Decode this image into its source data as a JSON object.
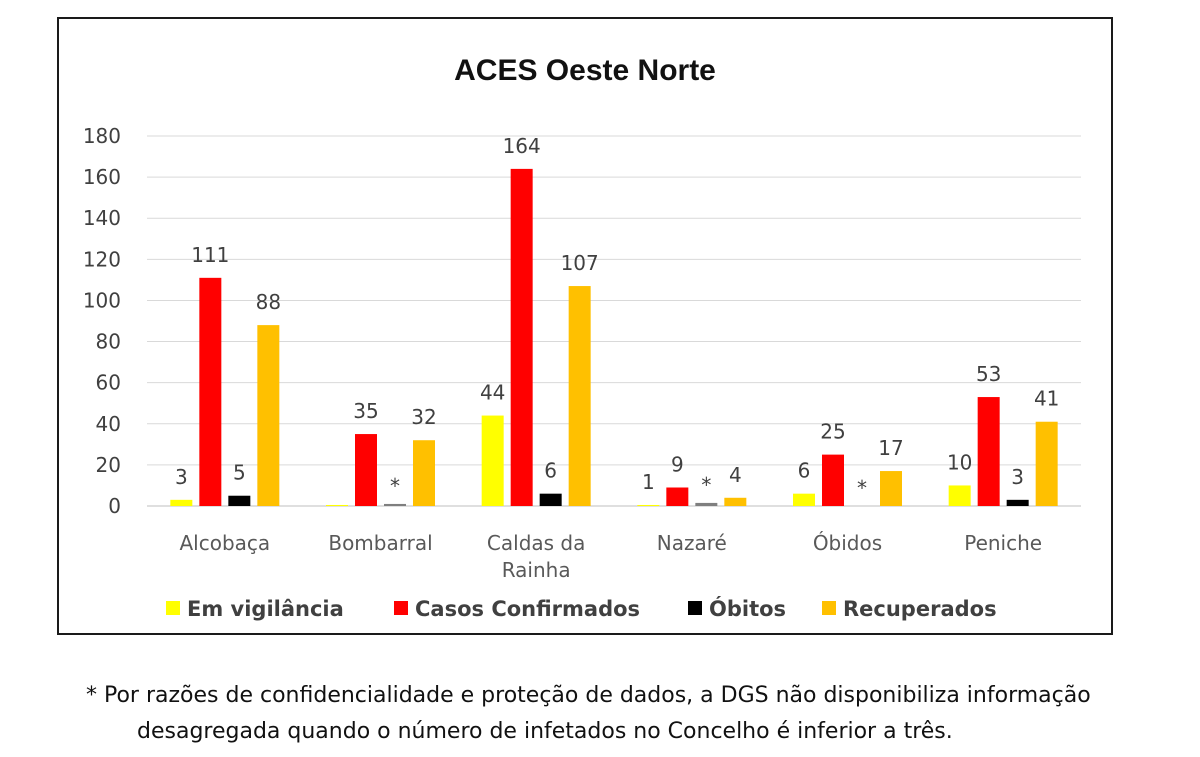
{
  "chart_data": {
    "type": "bar",
    "title": "ACES Oeste Norte",
    "categories": [
      "Alcobaça",
      "Bombarral",
      "Caldas da Rainha",
      "Nazaré",
      "Óbidos",
      "Peniche"
    ],
    "category_lines": [
      [
        "Alcobaça"
      ],
      [
        "Bombarral"
      ],
      [
        "Caldas da",
        "Rainha"
      ],
      [
        "Nazaré"
      ],
      [
        "Óbidos"
      ],
      [
        "Peniche"
      ]
    ],
    "series": [
      {
        "name": "Em vigilância",
        "color": "#ffff00",
        "values": [
          3,
          0.5,
          44,
          0.5,
          6,
          10
        ],
        "labels": [
          "3",
          "",
          "44",
          "1",
          "6",
          "10"
        ]
      },
      {
        "name": "Casos Confirmados",
        "color": "#ff0000",
        "values": [
          111,
          35,
          164,
          9,
          25,
          53
        ],
        "labels": [
          "111",
          "35",
          "164",
          "9",
          "25",
          "53"
        ]
      },
      {
        "name": "Óbitos",
        "color": "#000000",
        "values": [
          5,
          1,
          6,
          1.5,
          0,
          3
        ],
        "labels": [
          "5",
          "*",
          "6",
          "*",
          "*",
          "3"
        ]
      },
      {
        "name": "Recuperados",
        "color": "#ffc000",
        "values": [
          88,
          32,
          107,
          4,
          17,
          41
        ],
        "labels": [
          "88",
          "32",
          "107",
          "4",
          "17",
          "41"
        ]
      }
    ],
    "ylim": [
      0,
      180
    ],
    "yticks": [
      0,
      20,
      40,
      60,
      80,
      100,
      120,
      140,
      160,
      180
    ],
    "grid": true,
    "legend_position": "bottom"
  },
  "footnote": {
    "line1": "* Por razões de confidencialidade e proteção de dados, a DGS não disponibiliza informação",
    "line2": "desagregada quando o número de infetados no Concelho é inferior a três."
  }
}
